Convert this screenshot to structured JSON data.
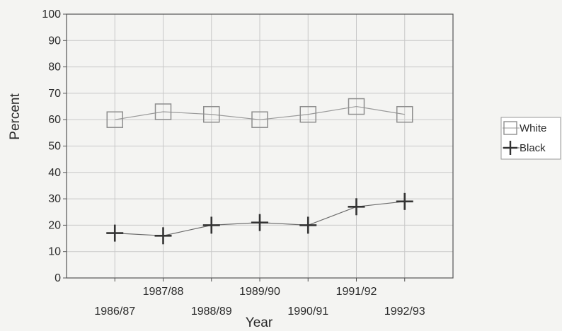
{
  "chart_data": {
    "type": "line",
    "title": "",
    "xlabel": "Year",
    "ylabel": "Percent",
    "categories": [
      "1986/87",
      "1987/88",
      "1988/89",
      "1989/90",
      "1990/91",
      "1991/92",
      "1992/93"
    ],
    "ylim": [
      0,
      100
    ],
    "yticks": [
      0,
      10,
      20,
      30,
      40,
      50,
      60,
      70,
      80,
      90,
      100
    ],
    "grid": true,
    "legend_position": "right",
    "series": [
      {
        "name": "White",
        "marker": "square",
        "values": [
          60,
          63,
          62,
          60,
          62,
          65,
          62
        ]
      },
      {
        "name": "Black",
        "marker": "plus",
        "values": [
          17,
          16,
          20,
          21,
          20,
          27,
          29
        ]
      }
    ]
  }
}
